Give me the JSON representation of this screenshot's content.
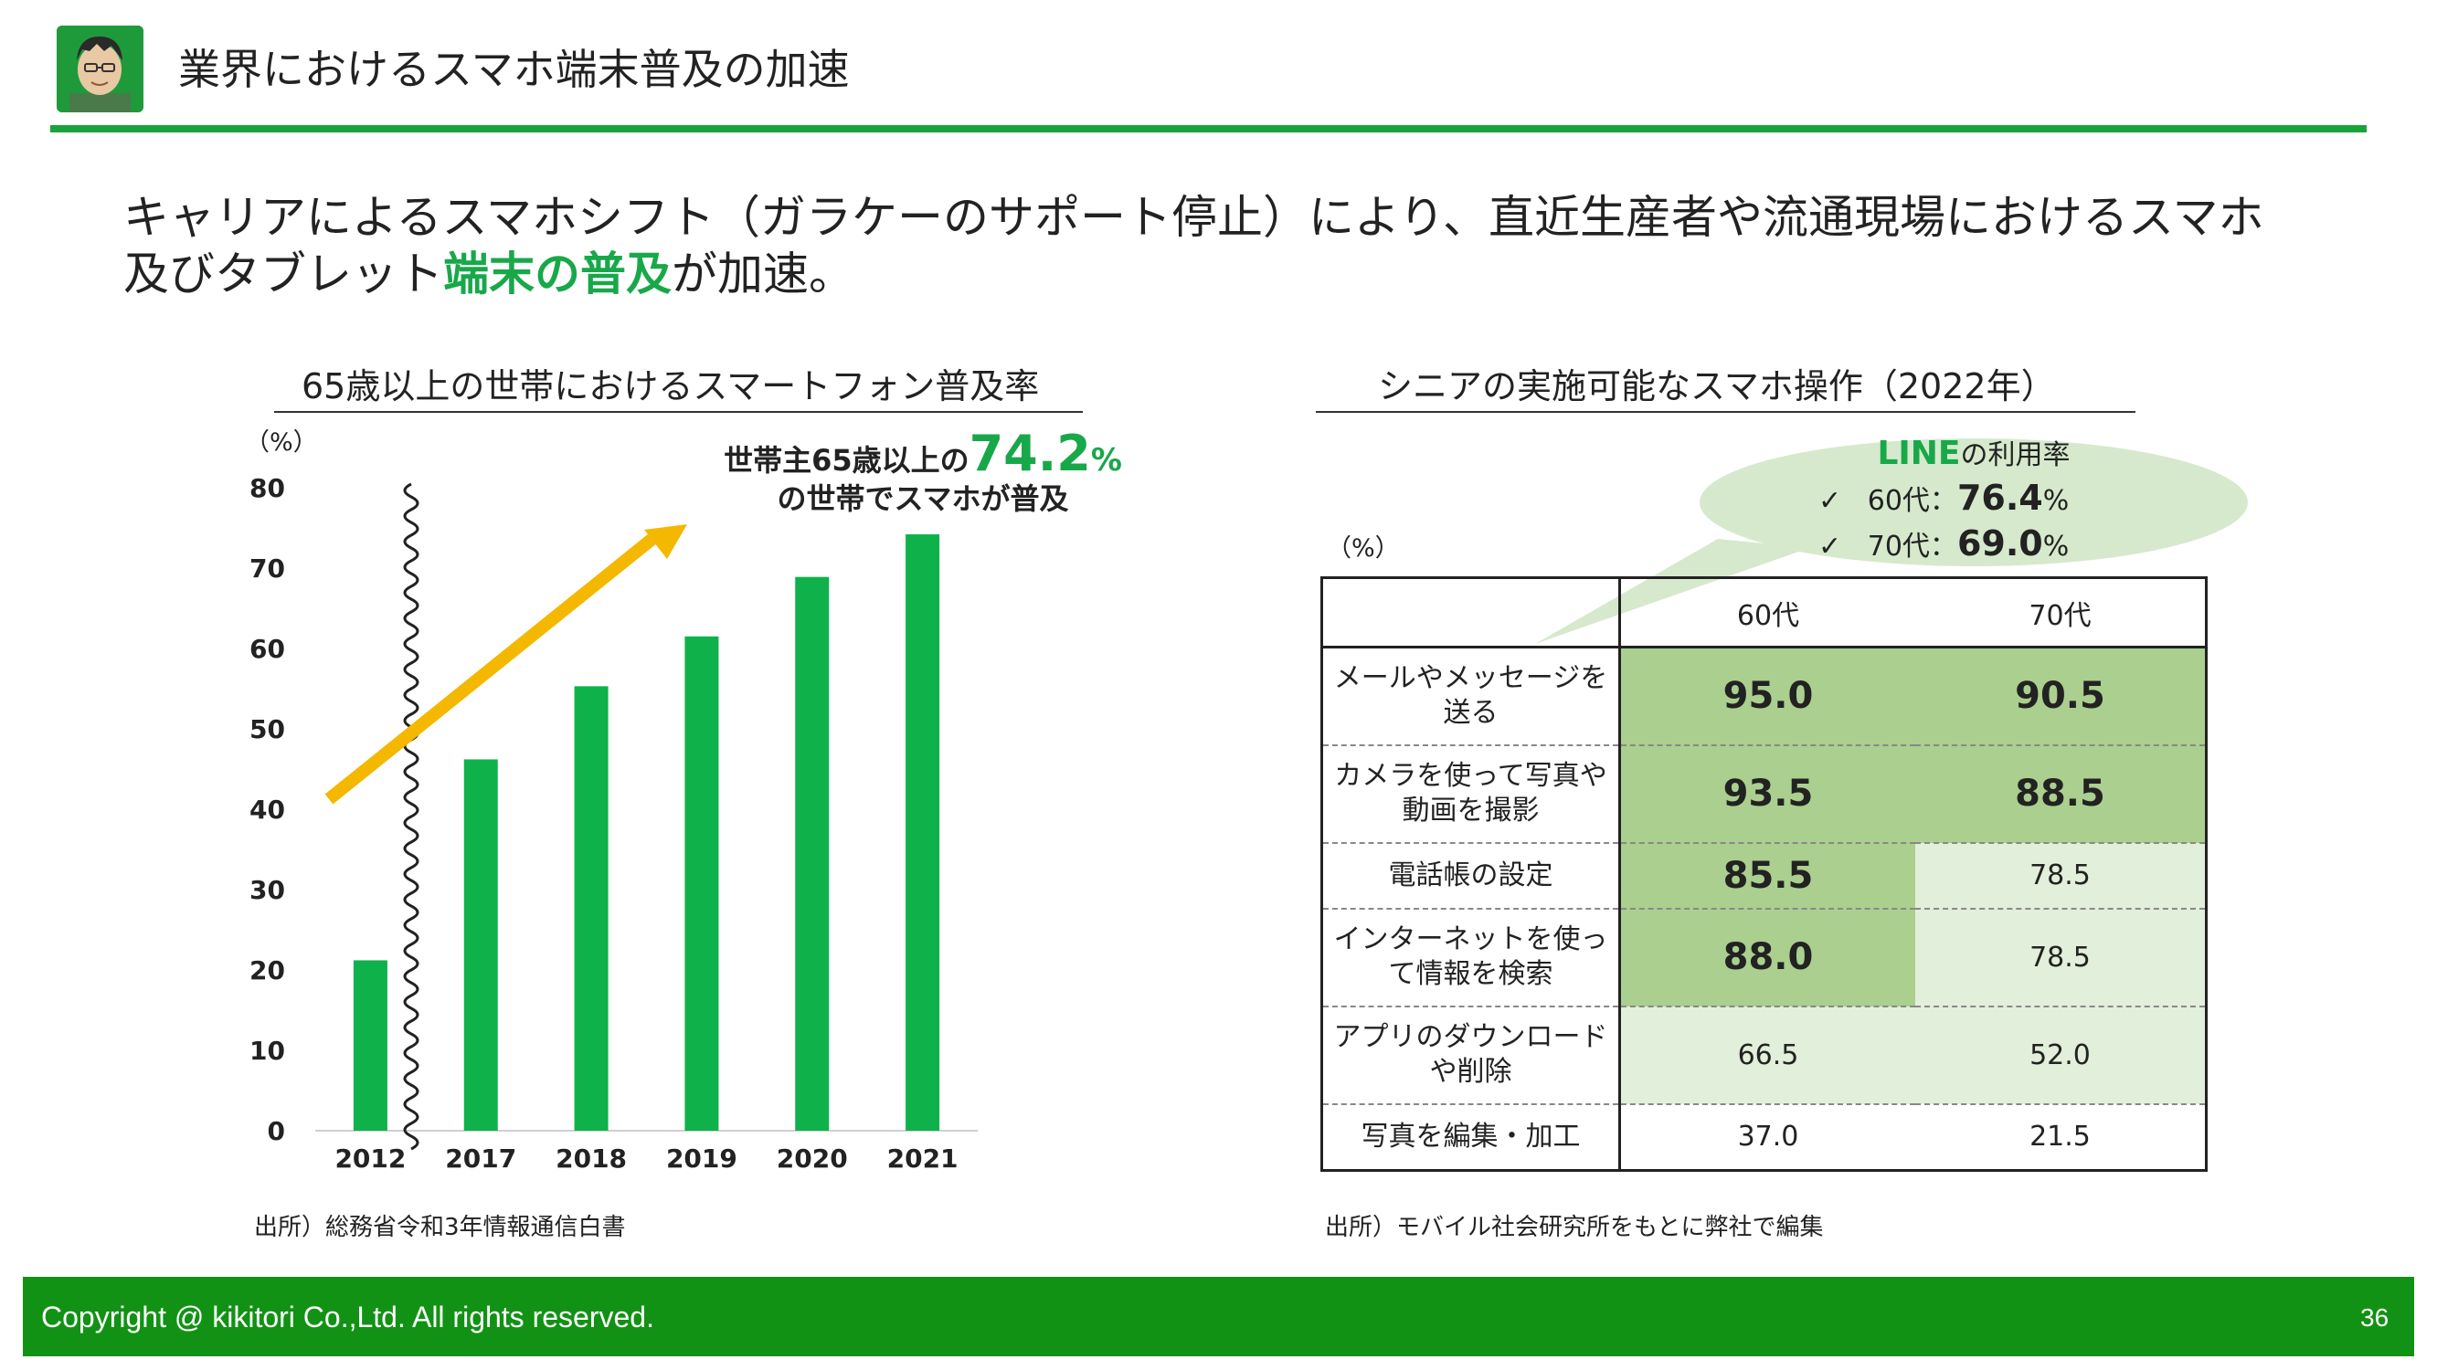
{
  "header": {
    "title": "業界におけるスマホ端末普及の加速"
  },
  "lead": {
    "line1": "キャリアによるスマホシフト（ガラケーのサポート停止）により、直近生産者や流通現場におけるスマホ",
    "line2_prefix": "及びタブレット",
    "line2_highlight": "端末の普及",
    "line2_suffix": "が加速。"
  },
  "chart": {
    "title": "65歳以上の世帯におけるスマートフォン普及率",
    "unit": "（%）",
    "callout_prefix": "世帯主65歳以上の",
    "callout_value": "74.2",
    "callout_pct": "%",
    "callout_line2": "の世帯でスマホが普及",
    "source": "出所）総務省令和3年情報通信白書"
  },
  "chart_data": {
    "type": "bar",
    "title": "65歳以上の世帯におけるスマートフォン普及率",
    "categories": [
      "2012",
      "2017",
      "2018",
      "2019",
      "2020",
      "2021"
    ],
    "values": [
      21.2,
      46.2,
      55.3,
      61.5,
      68.9,
      74.2
    ],
    "xlabel": "",
    "ylabel": "（%）",
    "ylim": [
      0,
      80
    ],
    "yticks": [
      0,
      10,
      20,
      30,
      40,
      50,
      60,
      70,
      80
    ],
    "bar_color": "#0fb24a",
    "arrow_color": "#f4b800"
  },
  "table": {
    "title": "シニアの実施可能なスマホ操作（2022年）",
    "unit": "（%）",
    "columns": [
      "60代",
      "70代"
    ],
    "rows": [
      {
        "label": "メールやメッセージを送る",
        "v60": "95.0",
        "v70": "90.5"
      },
      {
        "label": "カメラを使って写真や動画を撮影",
        "v60": "93.5",
        "v70": "88.5"
      },
      {
        "label": "電話帳の設定",
        "v60": "85.5",
        "v70": "78.5"
      },
      {
        "label": "インターネットを使って情報を検索",
        "v60": "88.0",
        "v70": "78.5"
      },
      {
        "label": "アプリのダウンロードや削除",
        "v60": "66.5",
        "v70": "52.0"
      },
      {
        "label": "写真を編集・加工",
        "v60": "37.0",
        "v70": "21.5"
      }
    ],
    "source": "出所）モバイル社会研究所をもとに弊社で編集"
  },
  "bubble": {
    "title_strong": "LINE",
    "title_rest": "の利用率",
    "check": "✓",
    "r1_label": "60代：",
    "r1_value": "76.4",
    "r2_label": "70代：",
    "r2_value": "69.0",
    "pct": "%"
  },
  "footer": {
    "copyright": "Copyright @ kikitori Co.,Ltd. All rights reserved.",
    "page": "36"
  },
  "colors": {
    "accent": "#18a84a",
    "footer": "#129214",
    "header_rule": "#1aa33a"
  }
}
